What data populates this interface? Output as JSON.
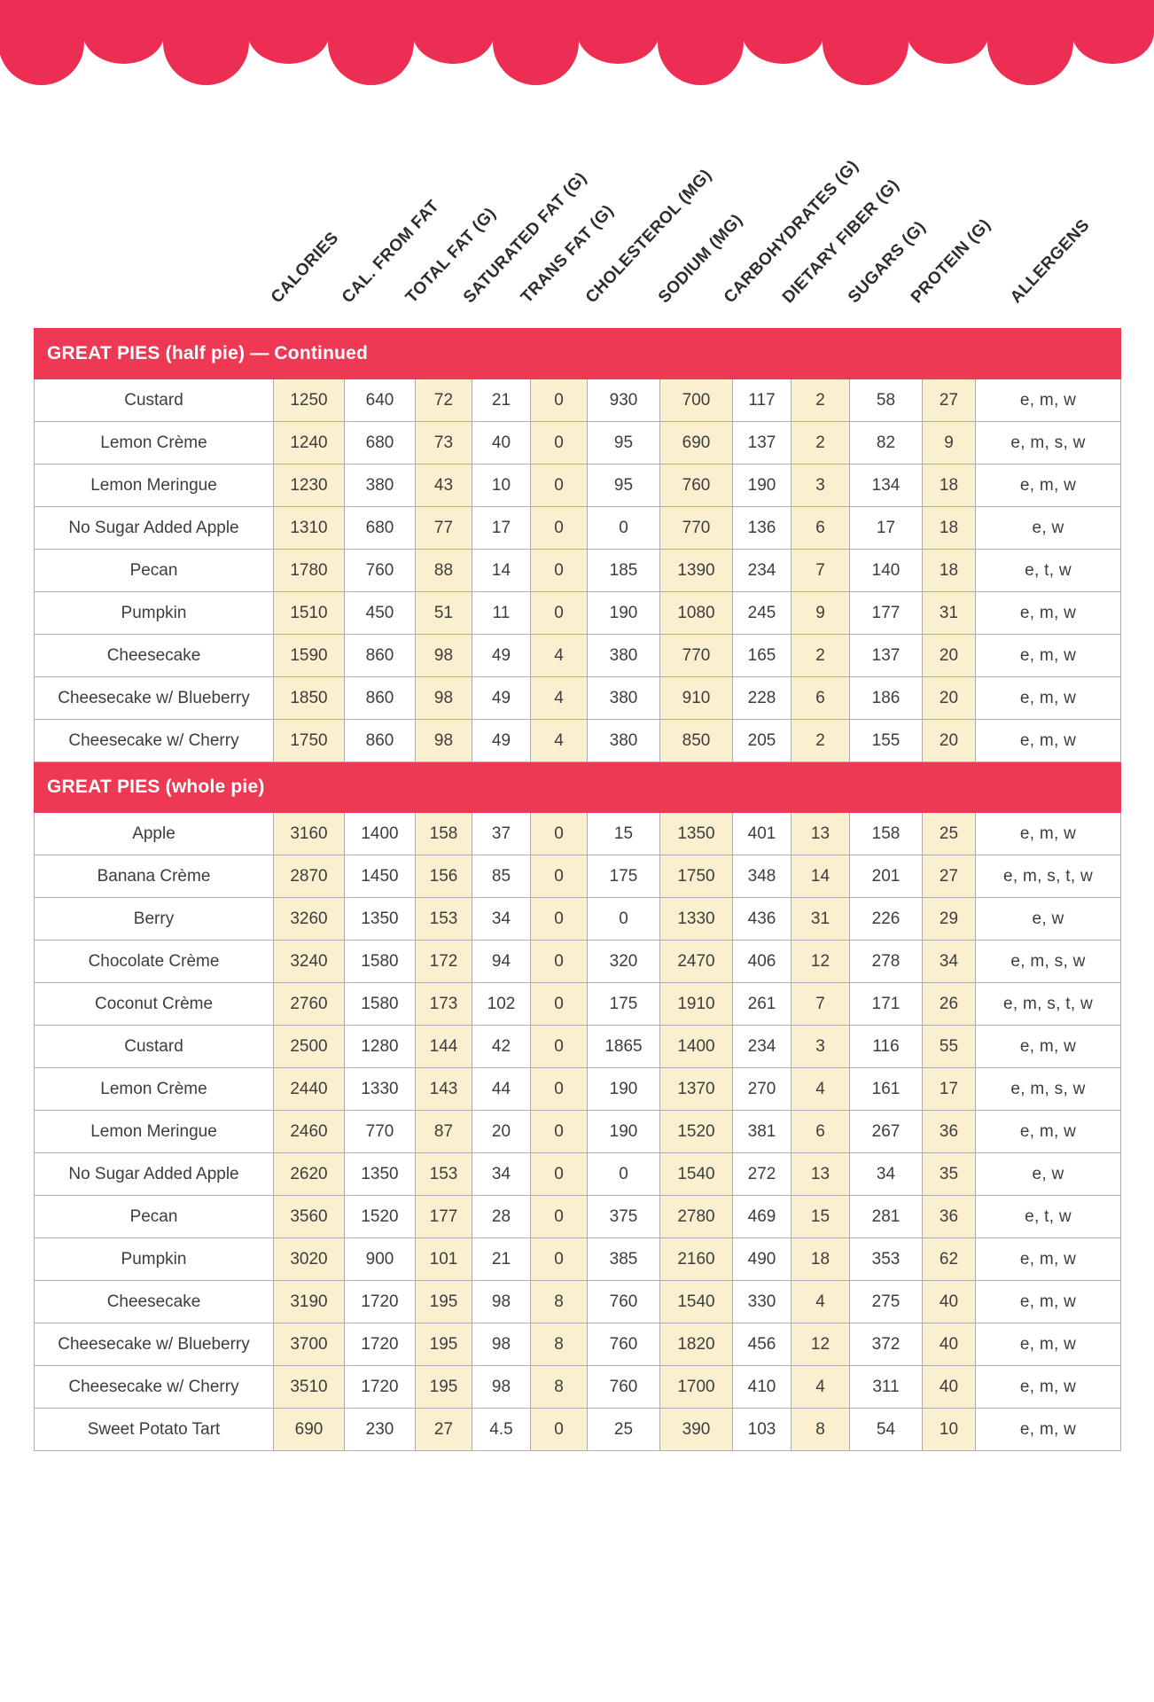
{
  "colors": {
    "accent_red": "#EC2E52",
    "section_bar_red": "#EE3955",
    "cream_column": "#FAF0CF",
    "grid_line": "#ADADAD",
    "text": "#3D3D3D"
  },
  "decor": {
    "scallop_count": 14
  },
  "columns": [
    "CALORIES",
    "CAL. FROM FAT",
    "TOTAL FAT (G)",
    "SATURATED FAT (G)",
    "TRANS FAT (G)",
    "CHOLESTEROL (MG)",
    "SODIUM (MG)",
    "CARBOHYDRATES (G)",
    "DIETARY FIBER (G)",
    "SUGARS (G)",
    "PROTEIN (G)",
    "ALLERGENS"
  ],
  "sections": [
    {
      "title": "GREAT PIES (half pie) — Continued",
      "rows": [
        {
          "name": "Custard",
          "values": [
            1250,
            640,
            72,
            21,
            0,
            930,
            700,
            117,
            2,
            58,
            27
          ],
          "allergens": "e, m, w"
        },
        {
          "name": "Lemon Crème",
          "values": [
            1240,
            680,
            73,
            40,
            0,
            95,
            690,
            137,
            2,
            82,
            9
          ],
          "allergens": "e, m, s, w"
        },
        {
          "name": "Lemon Meringue",
          "values": [
            1230,
            380,
            43,
            10,
            0,
            95,
            760,
            190,
            3,
            134,
            18
          ],
          "allergens": "e, m, w"
        },
        {
          "name": "No Sugar Added Apple",
          "values": [
            1310,
            680,
            77,
            17,
            0,
            0,
            770,
            136,
            6,
            17,
            18
          ],
          "allergens": "e, w"
        },
        {
          "name": "Pecan",
          "values": [
            1780,
            760,
            88,
            14,
            0,
            185,
            1390,
            234,
            7,
            140,
            18
          ],
          "allergens": "e, t, w"
        },
        {
          "name": "Pumpkin",
          "values": [
            1510,
            450,
            51,
            11,
            0,
            190,
            1080,
            245,
            9,
            177,
            31
          ],
          "allergens": "e, m, w"
        },
        {
          "name": "Cheesecake",
          "values": [
            1590,
            860,
            98,
            49,
            4,
            380,
            770,
            165,
            2,
            137,
            20
          ],
          "allergens": "e, m, w"
        },
        {
          "name": "Cheesecake w/ Blueberry",
          "values": [
            1850,
            860,
            98,
            49,
            4,
            380,
            910,
            228,
            6,
            186,
            20
          ],
          "allergens": "e, m, w"
        },
        {
          "name": "Cheesecake w/ Cherry",
          "values": [
            1750,
            860,
            98,
            49,
            4,
            380,
            850,
            205,
            2,
            155,
            20
          ],
          "allergens": "e, m, w"
        }
      ]
    },
    {
      "title": "GREAT PIES (whole pie)",
      "rows": [
        {
          "name": "Apple",
          "values": [
            3160,
            1400,
            158,
            37,
            0,
            15,
            1350,
            401,
            13,
            158,
            25
          ],
          "allergens": "e, m, w"
        },
        {
          "name": "Banana Crème",
          "values": [
            2870,
            1450,
            156,
            85,
            0,
            175,
            1750,
            348,
            14,
            201,
            27
          ],
          "allergens": "e, m, s, t, w"
        },
        {
          "name": "Berry",
          "values": [
            3260,
            1350,
            153,
            34,
            0,
            0,
            1330,
            436,
            31,
            226,
            29
          ],
          "allergens": "e, w"
        },
        {
          "name": "Chocolate Crème",
          "values": [
            3240,
            1580,
            172,
            94,
            0,
            320,
            2470,
            406,
            12,
            278,
            34
          ],
          "allergens": "e, m, s, w"
        },
        {
          "name": "Coconut Crème",
          "values": [
            2760,
            1580,
            173,
            102,
            0,
            175,
            1910,
            261,
            7,
            171,
            26
          ],
          "allergens": "e, m, s, t, w"
        },
        {
          "name": "Custard",
          "values": [
            2500,
            1280,
            144,
            42,
            0,
            1865,
            1400,
            234,
            3,
            116,
            55
          ],
          "allergens": "e, m, w"
        },
        {
          "name": "Lemon Crème",
          "values": [
            2440,
            1330,
            143,
            44,
            0,
            190,
            1370,
            270,
            4,
            161,
            17
          ],
          "allergens": "e, m, s, w"
        },
        {
          "name": "Lemon Meringue",
          "values": [
            2460,
            770,
            87,
            20,
            0,
            190,
            1520,
            381,
            6,
            267,
            36
          ],
          "allergens": "e, m, w"
        },
        {
          "name": "No Sugar Added Apple",
          "values": [
            2620,
            1350,
            153,
            34,
            0,
            0,
            1540,
            272,
            13,
            34,
            35
          ],
          "allergens": "e, w"
        },
        {
          "name": "Pecan",
          "values": [
            3560,
            1520,
            177,
            28,
            0,
            375,
            2780,
            469,
            15,
            281,
            36
          ],
          "allergens": "e, t, w"
        },
        {
          "name": "Pumpkin",
          "values": [
            3020,
            900,
            101,
            21,
            0,
            385,
            2160,
            490,
            18,
            353,
            62
          ],
          "allergens": "e, m, w"
        },
        {
          "name": "Cheesecake",
          "values": [
            3190,
            1720,
            195,
            98,
            8,
            760,
            1540,
            330,
            4,
            275,
            40
          ],
          "allergens": "e, m, w"
        },
        {
          "name": "Cheesecake w/ Blueberry",
          "values": [
            3700,
            1720,
            195,
            98,
            8,
            760,
            1820,
            456,
            12,
            372,
            40
          ],
          "allergens": "e, m, w"
        },
        {
          "name": "Cheesecake w/ Cherry",
          "values": [
            3510,
            1720,
            195,
            98,
            8,
            760,
            1700,
            410,
            4,
            311,
            40
          ],
          "allergens": "e, m, w"
        },
        {
          "name": "Sweet Potato Tart",
          "values": [
            690,
            230,
            27,
            4.5,
            0,
            25,
            390,
            103,
            8,
            54,
            10
          ],
          "allergens": "e, m, w"
        }
      ]
    }
  ]
}
